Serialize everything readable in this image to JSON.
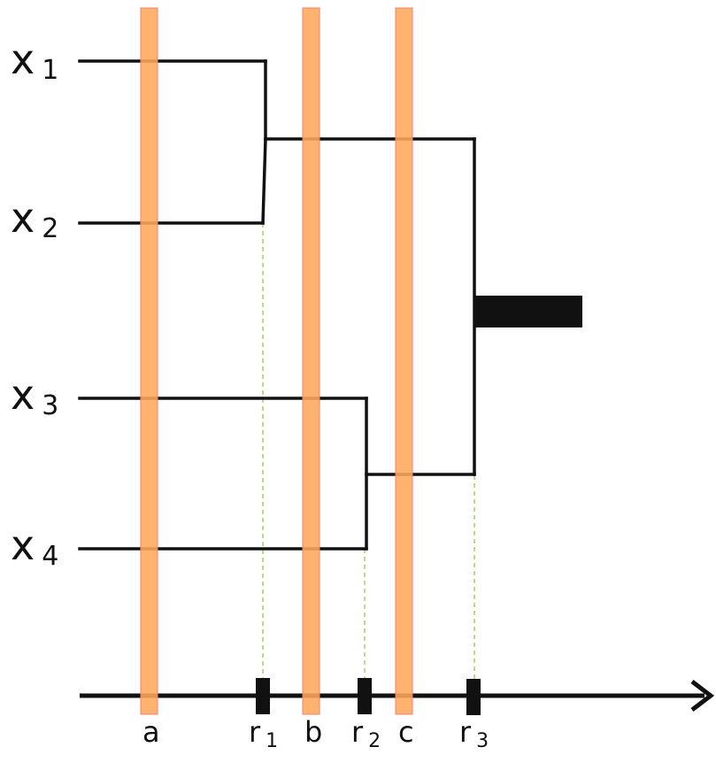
{
  "variables": [
    {
      "letter": "x",
      "index": "1"
    },
    {
      "letter": "x",
      "index": "2"
    },
    {
      "letter": "x",
      "index": "3"
    },
    {
      "letter": "x",
      "index": "4"
    }
  ],
  "cut_bands": [
    {
      "label": "a"
    },
    {
      "label": "b"
    },
    {
      "label": "c"
    }
  ],
  "merge_points": [
    {
      "letter": "r",
      "index": "1"
    },
    {
      "letter": "r",
      "index": "2"
    },
    {
      "letter": "r",
      "index": "3"
    }
  ],
  "colors": {
    "band_fill": "#FFA95A",
    "band_stroke": "#F08070",
    "line": "#111111",
    "guide": "#8BC34A",
    "background": "#ffffff"
  }
}
